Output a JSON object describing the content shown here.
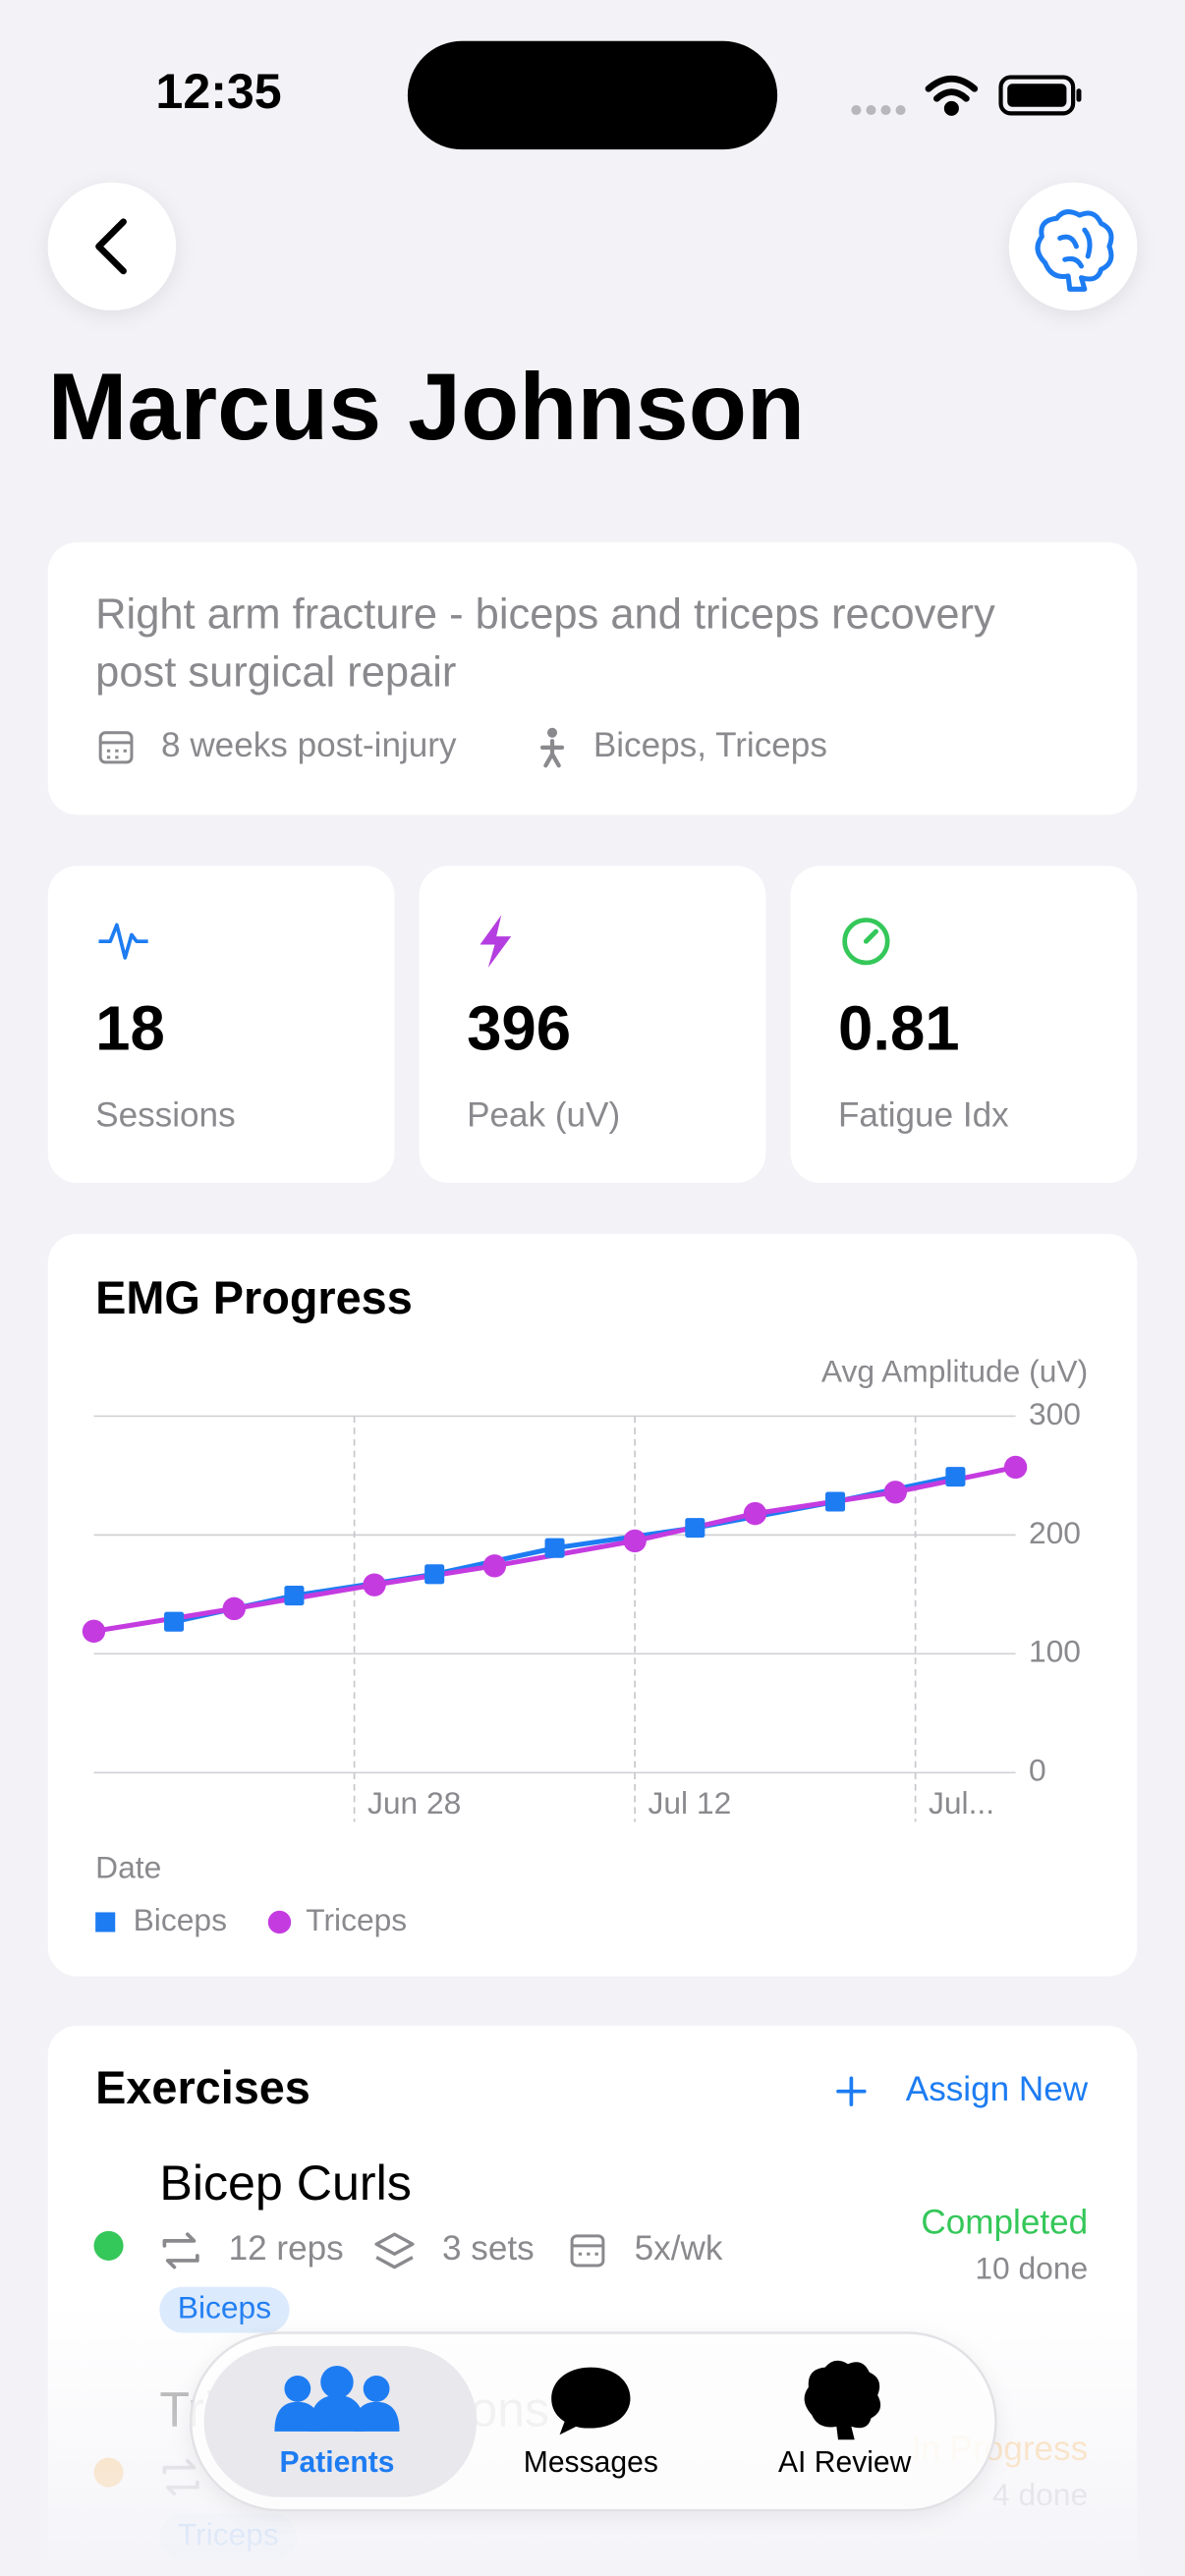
{
  "status_bar": {
    "time": "12:35"
  },
  "header": {
    "title": "Marcus Johnson"
  },
  "summary": {
    "description": "Right arm fracture - biceps and triceps recovery post surgical repair",
    "duration": "8 weeks post-injury",
    "muscles": "Biceps, Triceps"
  },
  "stats": [
    {
      "value": 18,
      "label": "Sessions",
      "color": "#1d7cf2"
    },
    {
      "value": 396,
      "label": "Peak (uV)",
      "color": "#b43ee0"
    },
    {
      "value": 0.81,
      "label": "Fatigue Idx",
      "color": "#34c759"
    }
  ],
  "chart_data": {
    "type": "line",
    "title": "EMG Progress",
    "y_label": "Avg Amplitude (uV)",
    "x_label": "Date",
    "series": [
      {
        "name": "Biceps",
        "color": "#1d7cf2",
        "marker": "square",
        "x": [
          "Jun 19",
          "Jun 25",
          "Jul 2",
          "Jul 8",
          "Jul 15",
          "Jul 22",
          "Jul 28"
        ],
        "values": [
          127,
          149,
          167,
          189,
          206,
          228,
          249
        ]
      },
      {
        "name": "Triceps",
        "color": "#c43be0",
        "marker": "circle",
        "x": [
          "Jun 15",
          "Jun 22",
          "Jun 29",
          "Jul 5",
          "Jul 12",
          "Jul 18",
          "Jul 25",
          "Jul 31"
        ],
        "values": [
          119,
          138,
          158,
          174,
          195,
          218,
          236,
          257
        ]
      }
    ],
    "xlim": [
      "Jun 15",
      "Jul 31"
    ],
    "xticks": [
      "Jun 28",
      "Jul 12",
      {
        "value": "Jul 26",
        "label": "Jul..."
      }
    ],
    "ylim": [
      0,
      300
    ],
    "yticks": [
      0,
      100,
      200,
      300
    ],
    "grid": true,
    "legend": "bottom-left"
  },
  "exercises": {
    "title": "Exercises",
    "action": "Assign New",
    "items": [
      {
        "name": "Bicep Curls",
        "reps": "12 reps",
        "sets": "3 sets",
        "frequency": "5x/wk",
        "muscle": "Biceps",
        "status": "Completed",
        "done": "10 done",
        "color": "#34c759"
      },
      {
        "name": "Tricep Extensions",
        "muscle": "Triceps",
        "status": "In Progress",
        "done": "4 done",
        "color": "#ff9500"
      }
    ]
  },
  "tab_bar": {
    "items": [
      {
        "label": "Patients",
        "selected": true
      },
      {
        "label": "Messages",
        "selected": false
      },
      {
        "label": "AI Review",
        "selected": false
      }
    ]
  }
}
